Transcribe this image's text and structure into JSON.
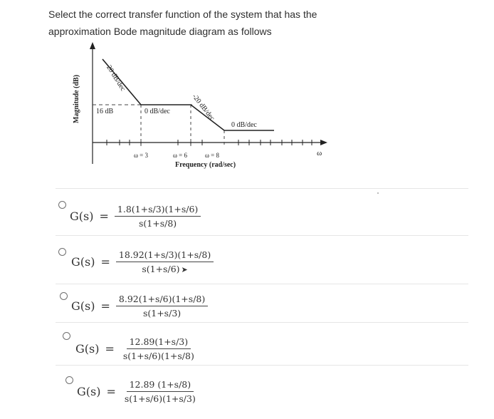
{
  "question": {
    "text": "Select the correct transfer function of the system that has the approximation Bode magnitude diagram as follows"
  },
  "diagram": {
    "ylabel": "Magnitude (dB)",
    "xlabel": "Frequency (rad/sec)",
    "omega_axis_symbol": "ω",
    "level_label": "16 dB",
    "segment_labels": {
      "first": "-20 dB/dec",
      "second": "0 dB/dec",
      "third": "-20 dB/dec",
      "fourth": "0 dB/dec"
    },
    "corner_labels": {
      "c1": "ω = 3",
      "c2": "ω = 6",
      "c3": "ω = 8"
    }
  },
  "options": [
    {
      "lhs": "G(s)",
      "eq": "=",
      "numerator": "1.8(1+s/3)(1+s/6)",
      "denominator": "s(1+s/8)"
    },
    {
      "lhs": "G(s)",
      "eq": "=",
      "numerator": "18.92(1+s/3)(1+s/8)",
      "denominator": "s(1+s/6)"
    },
    {
      "lhs": "G(s)",
      "eq": "=",
      "numerator": "8.92(1+s/6)(1+s/8)",
      "denominator": "s(1+s/3)"
    },
    {
      "lhs": "G(s)",
      "eq": "=",
      "numerator": "12.89(1+s/3)",
      "denominator": "s(1+s/6)(1+s/8)"
    },
    {
      "lhs": "G(s)",
      "eq": "=",
      "numerator": "12.89 (1+s/8)",
      "denominator": "s(1+s/6)(1+s/3)"
    }
  ],
  "colors": {
    "text": "#333333",
    "line": "#222222",
    "radio": "#6f6f6f"
  }
}
